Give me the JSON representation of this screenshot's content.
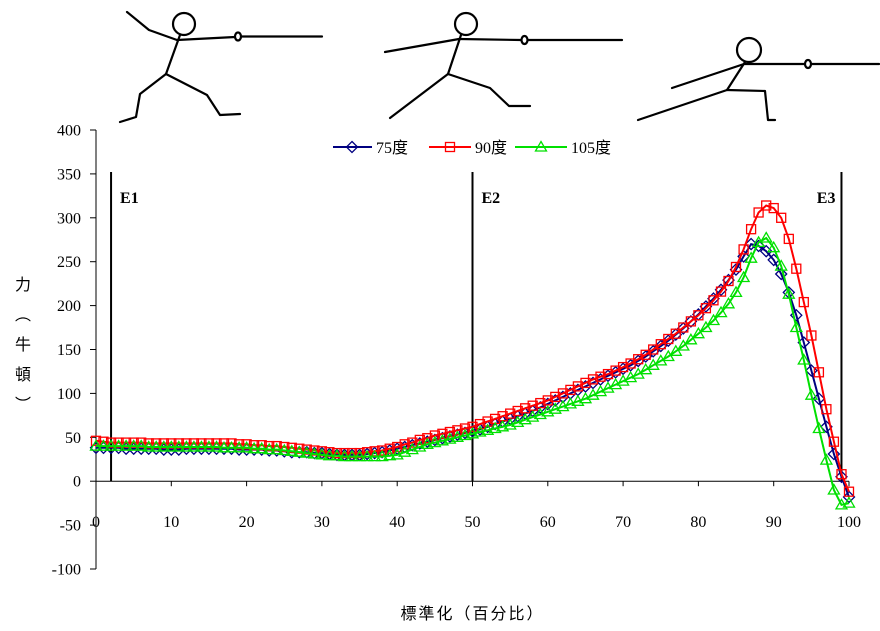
{
  "illustrations": {
    "icons": [
      "fencer-en-garde-icon",
      "fencer-advance-icon",
      "fencer-lunge-icon"
    ]
  },
  "chart_data": {
    "type": "line",
    "xlabel": "標準化（百分比）",
    "ylabel": "力（牛頓）",
    "xlim": [
      0,
      100
    ],
    "ylim": [
      -100,
      400
    ],
    "xticks": [
      0,
      10,
      20,
      30,
      40,
      50,
      60,
      70,
      80,
      90,
      100
    ],
    "yticks": [
      400,
      350,
      300,
      250,
      200,
      150,
      100,
      50,
      0,
      -50,
      -100
    ],
    "grid": false,
    "legend": "top-center",
    "phase_lines": [
      {
        "label": "E1",
        "x": 2
      },
      {
        "label": "E2",
        "x": 50
      },
      {
        "label": "E3",
        "x": 99
      }
    ],
    "x": [
      0,
      1,
      2,
      3,
      4,
      5,
      6,
      7,
      8,
      9,
      10,
      11,
      12,
      13,
      14,
      15,
      16,
      17,
      18,
      19,
      20,
      21,
      22,
      23,
      24,
      25,
      26,
      27,
      28,
      29,
      30,
      31,
      32,
      33,
      34,
      35,
      36,
      37,
      38,
      39,
      40,
      41,
      42,
      43,
      44,
      45,
      46,
      47,
      48,
      49,
      50,
      51,
      52,
      53,
      54,
      55,
      56,
      57,
      58,
      59,
      60,
      61,
      62,
      63,
      64,
      65,
      66,
      67,
      68,
      69,
      70,
      71,
      72,
      73,
      74,
      75,
      76,
      77,
      78,
      79,
      80,
      81,
      82,
      83,
      84,
      85,
      86,
      87,
      88,
      89,
      90,
      91,
      92,
      93,
      94,
      95,
      96,
      97,
      98,
      99,
      100
    ],
    "series": [
      {
        "name": "75度",
        "color": "#000080",
        "marker": "diamond",
        "values": [
          38,
          38,
          38,
          38,
          37,
          37,
          37,
          37,
          37,
          36,
          36,
          36,
          37,
          37,
          37,
          37,
          37,
          37,
          37,
          36,
          36,
          36,
          36,
          35,
          35,
          34,
          33,
          33,
          33,
          32,
          32,
          31,
          30,
          30,
          30,
          30,
          31,
          32,
          33,
          35,
          37,
          39,
          41,
          43,
          45,
          47,
          49,
          51,
          53,
          55,
          57,
          59,
          62,
          65,
          68,
          71,
          74,
          77,
          80,
          84,
          88,
          92,
          96,
          100,
          104,
          108,
          112,
          116,
          120,
          124,
          128,
          132,
          137,
          142,
          148,
          154,
          160,
          167,
          174,
          182,
          190,
          199,
          208,
          218,
          229,
          241,
          256,
          270,
          268,
          262,
          252,
          236,
          215,
          189,
          158,
          126,
          94,
          62,
          31,
          5,
          -18
        ]
      },
      {
        "name": "90度",
        "color": "#FF0000",
        "marker": "square",
        "values": [
          46,
          45,
          44,
          44,
          44,
          44,
          44,
          43,
          43,
          43,
          43,
          43,
          43,
          43,
          43,
          43,
          43,
          43,
          43,
          42,
          42,
          41,
          41,
          40,
          40,
          39,
          38,
          37,
          36,
          35,
          34,
          33,
          32,
          32,
          32,
          32,
          33,
          34,
          35,
          37,
          39,
          42,
          44,
          47,
          49,
          52,
          54,
          56,
          58,
          60,
          62,
          65,
          68,
          71,
          74,
          77,
          80,
          83,
          86,
          89,
          92,
          96,
          100,
          104,
          108,
          112,
          116,
          119,
          122,
          126,
          130,
          134,
          139,
          144,
          150,
          156,
          162,
          168,
          175,
          182,
          189,
          197,
          206,
          216,
          228,
          244,
          264,
          287,
          306,
          314,
          311,
          300,
          276,
          242,
          204,
          166,
          124,
          82,
          45,
          8,
          -12
        ]
      },
      {
        "name": "105度",
        "color": "#00E000",
        "marker": "triangle",
        "values": [
          40,
          40,
          40,
          40,
          40,
          40,
          40,
          39,
          39,
          39,
          39,
          39,
          39,
          39,
          39,
          39,
          39,
          38,
          38,
          38,
          38,
          37,
          37,
          36,
          36,
          35,
          34,
          33,
          32,
          31,
          30,
          29,
          29,
          28,
          28,
          28,
          28,
          28,
          28,
          29,
          30,
          33,
          36,
          39,
          42,
          44,
          46,
          48,
          50,
          52,
          54,
          56,
          58,
          60,
          62,
          64,
          67,
          70,
          73,
          76,
          79,
          82,
          85,
          88,
          91,
          94,
          98,
          102,
          106,
          110,
          114,
          118,
          122,
          127,
          132,
          137,
          142,
          148,
          154,
          161,
          168,
          175,
          183,
          192,
          202,
          215,
          232,
          254,
          272,
          277,
          266,
          245,
          213,
          175,
          138,
          98,
          60,
          24,
          -10,
          -27,
          -25
        ]
      }
    ]
  }
}
